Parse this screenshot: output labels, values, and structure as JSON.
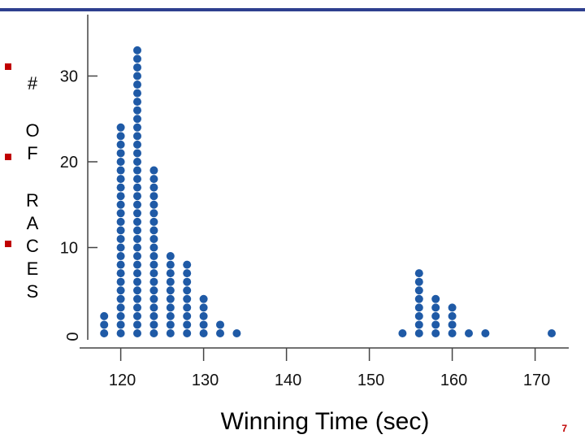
{
  "chart_data": {
    "type": "dot",
    "xlabel": "Winning Time (sec)",
    "ylabel": "# OF RACES",
    "ylabel_chars": [
      "#",
      "O",
      "F",
      "R",
      "A",
      "C",
      "E",
      "S"
    ],
    "xlim": [
      115,
      175
    ],
    "ylim": [
      0,
      36
    ],
    "xticks": [
      120,
      130,
      140,
      150,
      160,
      170
    ],
    "yticks": [
      0,
      10,
      20,
      30
    ],
    "dot_color": "#1f5aa6",
    "points": [
      {
        "x": 118,
        "count": 3
      },
      {
        "x": 120,
        "count": 25
      },
      {
        "x": 122,
        "count": 34
      },
      {
        "x": 124,
        "count": 20
      },
      {
        "x": 126,
        "count": 10
      },
      {
        "x": 128,
        "count": 9
      },
      {
        "x": 130,
        "count": 5
      },
      {
        "x": 132,
        "count": 2
      },
      {
        "x": 134,
        "count": 1
      },
      {
        "x": 154,
        "count": 1
      },
      {
        "x": 156,
        "count": 8
      },
      {
        "x": 158,
        "count": 5
      },
      {
        "x": 160,
        "count": 4
      },
      {
        "x": 162,
        "count": 1
      },
      {
        "x": 164,
        "count": 1
      },
      {
        "x": 172,
        "count": 1
      }
    ]
  },
  "slide": {
    "page_number": "7",
    "accent_color": "#c00000"
  }
}
